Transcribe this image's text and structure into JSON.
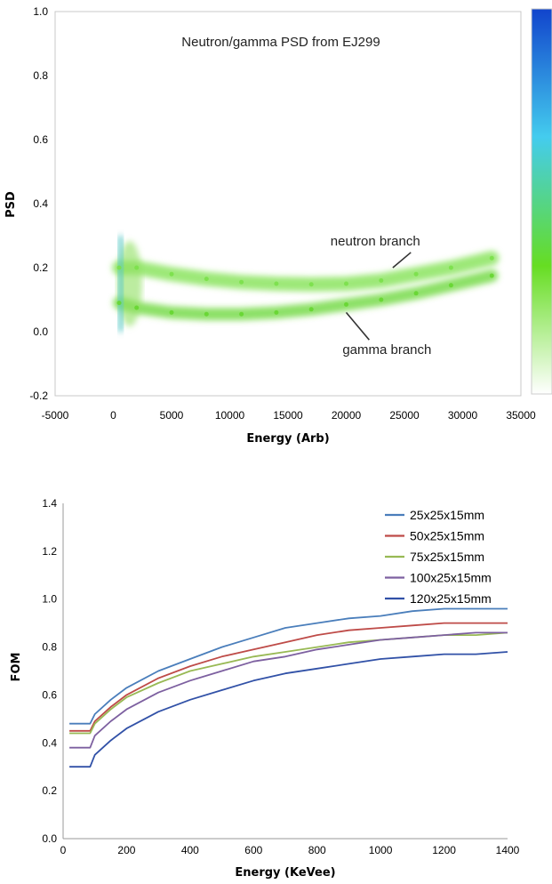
{
  "chart_data": [
    {
      "type": "scatter",
      "title": "Neutron/gamma PSD from EJ299",
      "xlabel": "Energy (Arb)",
      "ylabel": "PSD",
      "xlim": [
        -5000,
        35000
      ],
      "ylim": [
        -0.2,
        1.0
      ],
      "x_ticks": [
        "-5000",
        "0",
        "5000",
        "10000",
        "15000",
        "20000",
        "25000",
        "30000",
        "35000"
      ],
      "y_ticks": [
        "-0.2",
        "0.0",
        "0.2",
        "0.4",
        "0.6",
        "0.8",
        "1.0"
      ],
      "grid": false,
      "colorbar": true,
      "colorbar_colors": [
        "#ffffff",
        "#66dd22",
        "#44ccee",
        "#1144cc"
      ],
      "annotations": [
        {
          "text": "neutron branch",
          "x": 22500,
          "y": 0.27,
          "arrow_to": [
            24000,
            0.2
          ]
        },
        {
          "text": "gamma branch",
          "x": 23500,
          "y": -0.07,
          "arrow_to": [
            20000,
            0.06
          ]
        }
      ],
      "series": [
        {
          "branch": "neutron",
          "color": "#7be04a",
          "x": [
            500,
            2000,
            5000,
            8000,
            11000,
            14000,
            17000,
            20000,
            23000,
            26000,
            29000,
            32500
          ],
          "y": [
            0.2,
            0.2,
            0.18,
            0.165,
            0.155,
            0.15,
            0.148,
            0.15,
            0.16,
            0.18,
            0.2,
            0.23
          ]
        },
        {
          "branch": "gamma",
          "color": "#66d630",
          "x": [
            500,
            2000,
            5000,
            8000,
            11000,
            14000,
            17000,
            20000,
            23000,
            26000,
            29000,
            32500
          ],
          "y": [
            0.09,
            0.075,
            0.06,
            0.055,
            0.055,
            0.06,
            0.07,
            0.085,
            0.1,
            0.12,
            0.145,
            0.175
          ]
        }
      ]
    },
    {
      "type": "line",
      "title": "",
      "xlabel": "Energy (KeVee)",
      "ylabel": "FOM",
      "xlim": [
        0,
        1400
      ],
      "ylim": [
        0,
        1.4
      ],
      "x_ticks": [
        "0",
        "200",
        "400",
        "600",
        "800",
        "1000",
        "1200",
        "1400"
      ],
      "y_ticks": [
        "0.0",
        "0.2",
        "0.4",
        "0.6",
        "0.8",
        "1.0",
        "1.2",
        "1.4"
      ],
      "grid": false,
      "legend_position": "top-right",
      "x": [
        20,
        60,
        85,
        100,
        150,
        200,
        300,
        400,
        500,
        600,
        700,
        800,
        900,
        1000,
        1100,
        1200,
        1300,
        1400
      ],
      "series": [
        {
          "name": "25x25x15mm",
          "color": "#4a7ebb",
          "values": [
            0.48,
            0.48,
            0.48,
            0.52,
            0.58,
            0.63,
            0.7,
            0.75,
            0.8,
            0.84,
            0.88,
            0.9,
            0.92,
            0.93,
            0.95,
            0.96,
            0.96,
            0.96
          ]
        },
        {
          "name": "50x25x15mm",
          "color": "#be4b48",
          "values": [
            0.45,
            0.45,
            0.45,
            0.49,
            0.55,
            0.6,
            0.67,
            0.72,
            0.76,
            0.79,
            0.82,
            0.85,
            0.87,
            0.88,
            0.89,
            0.9,
            0.9,
            0.9
          ]
        },
        {
          "name": "75x25x15mm",
          "color": "#98b954",
          "values": [
            0.44,
            0.44,
            0.44,
            0.48,
            0.54,
            0.59,
            0.65,
            0.7,
            0.73,
            0.76,
            0.78,
            0.8,
            0.82,
            0.83,
            0.84,
            0.85,
            0.85,
            0.86
          ]
        },
        {
          "name": "100x25x15mm",
          "color": "#7d60a0",
          "values": [
            0.38,
            0.38,
            0.38,
            0.43,
            0.49,
            0.54,
            0.61,
            0.66,
            0.7,
            0.74,
            0.76,
            0.79,
            0.81,
            0.83,
            0.84,
            0.85,
            0.86,
            0.86
          ]
        },
        {
          "name": "120x25x15mm",
          "color": "#3151a7",
          "values": [
            0.3,
            0.3,
            0.3,
            0.35,
            0.41,
            0.46,
            0.53,
            0.58,
            0.62,
            0.66,
            0.69,
            0.71,
            0.73,
            0.75,
            0.76,
            0.77,
            0.77,
            0.78
          ]
        }
      ]
    }
  ]
}
